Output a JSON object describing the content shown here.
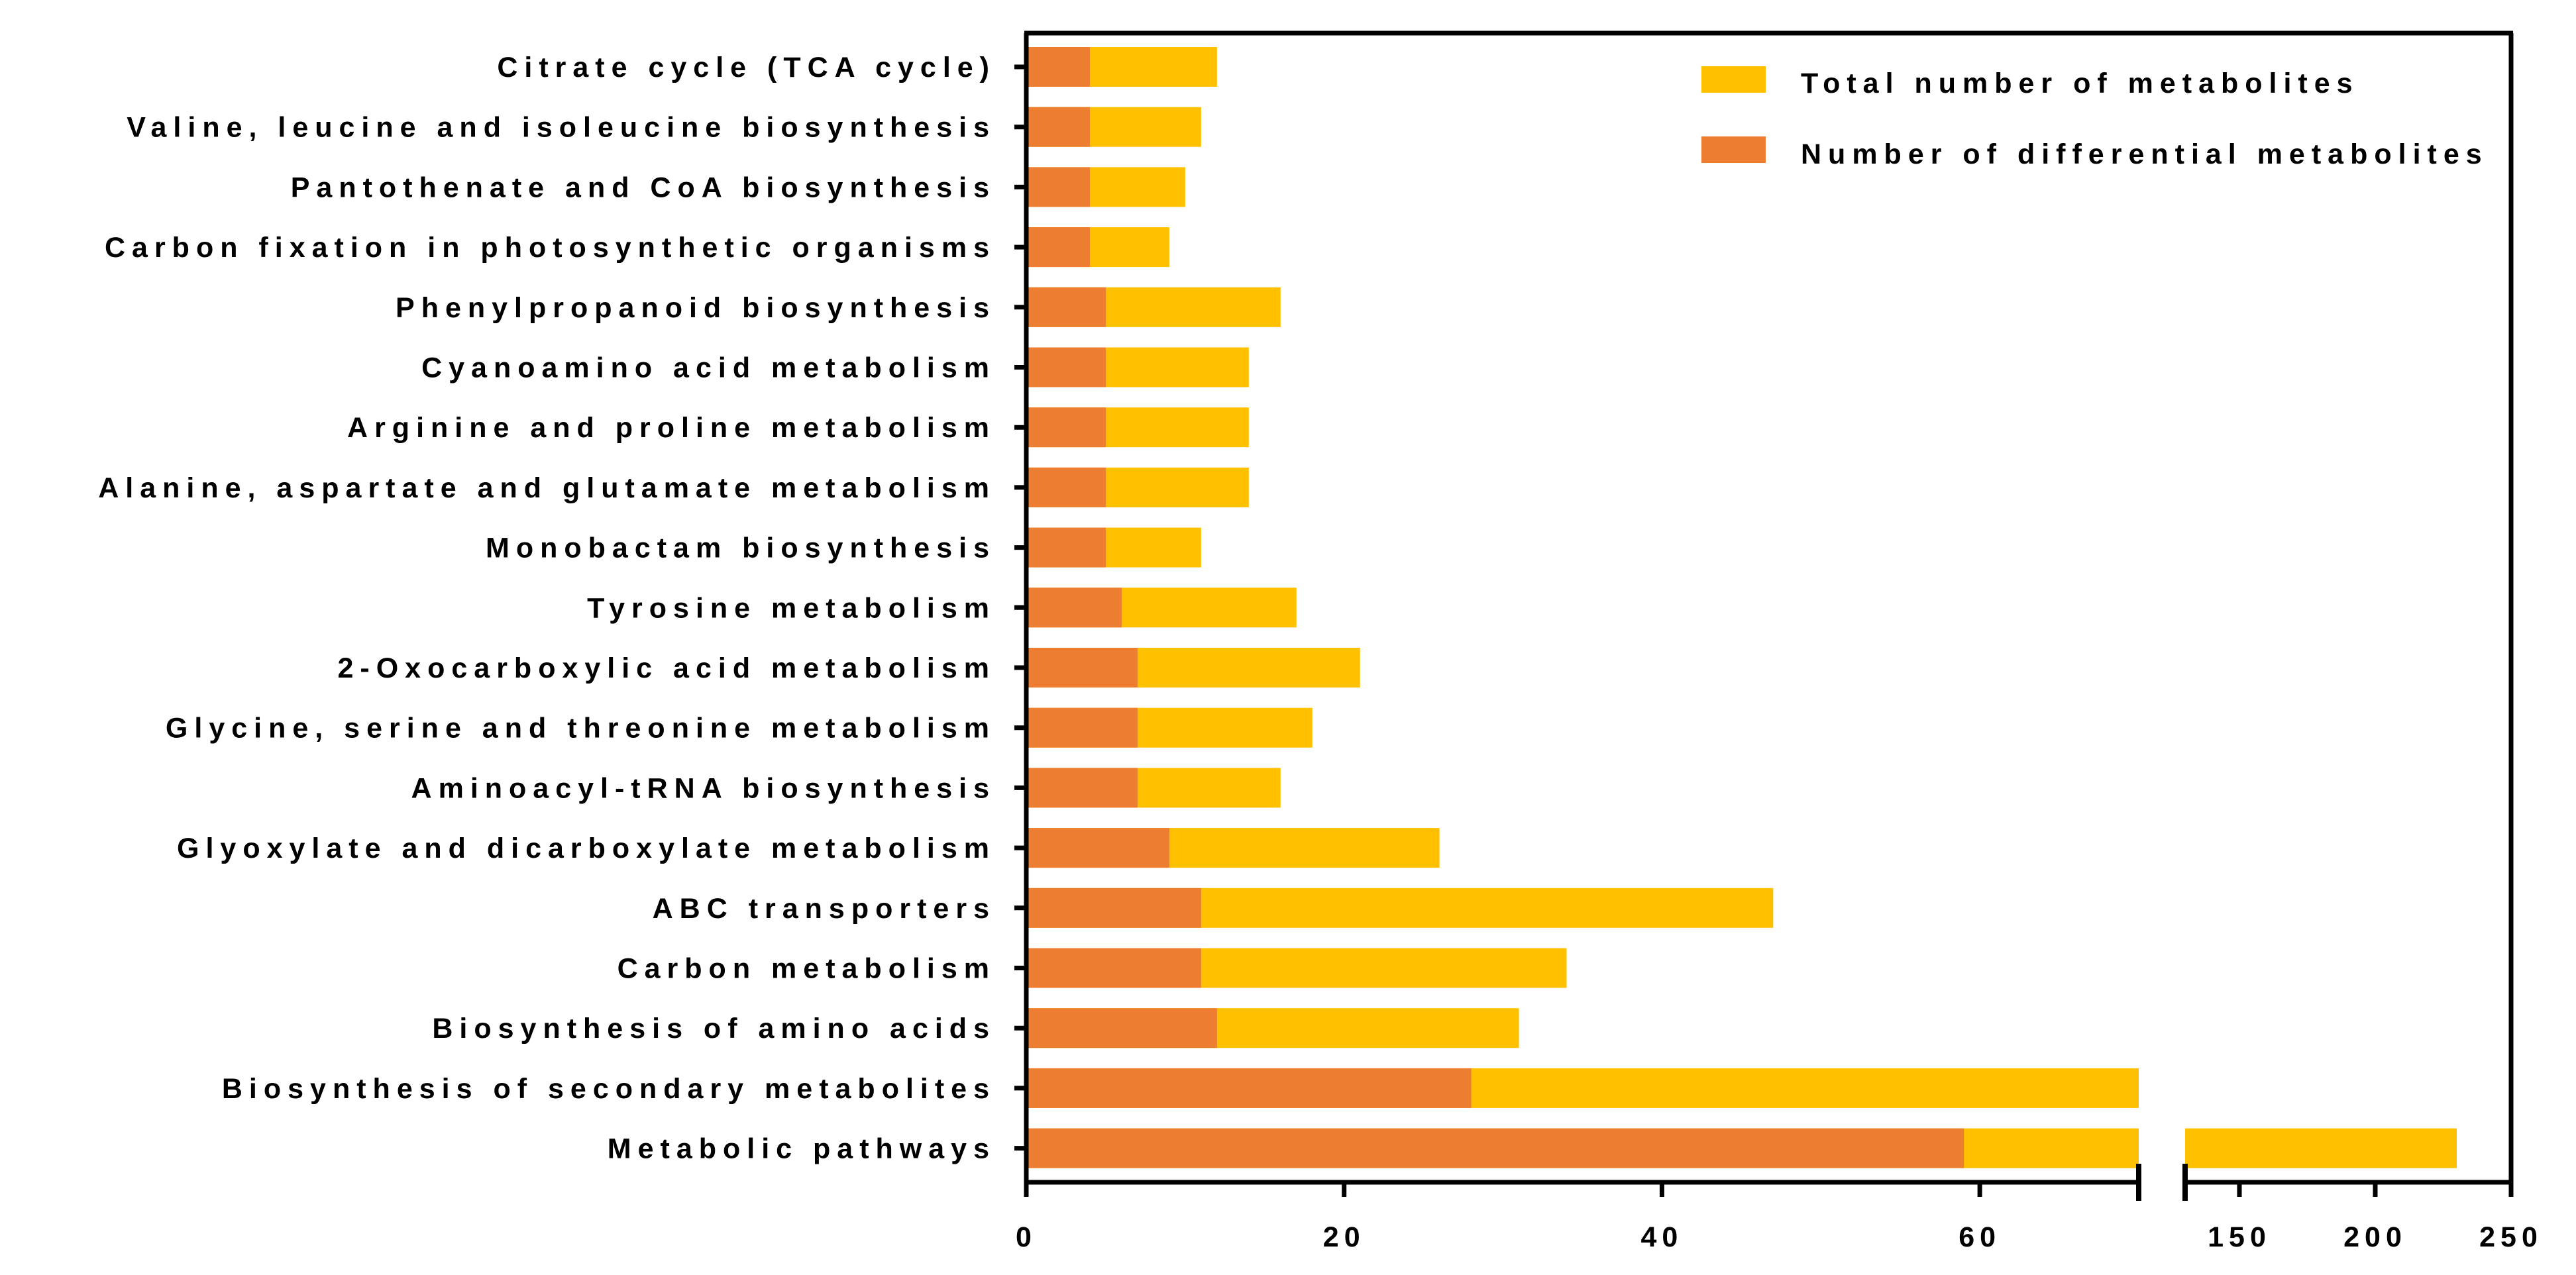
{
  "chart_data": {
    "type": "bar",
    "orientation": "horizontal",
    "stacked": "overlay",
    "categories": [
      "Citrate cycle (TCA cycle)",
      "Valine, leucine and isoleucine biosynthesis",
      "Pantothenate and CoA biosynthesis",
      "Carbon fixation in photosynthetic organisms",
      "Phenylpropanoid biosynthesis",
      "Cyanoamino acid metabolism",
      "Arginine and proline metabolism",
      "Alanine, aspartate and glutamate metabolism",
      "Monobactam biosynthesis",
      "Tyrosine metabolism",
      "2-Oxocarboxylic acid metabolism",
      "Glycine, serine and threonine metabolism",
      "Aminoacyl-tRNA biosynthesis",
      "Glyoxylate and dicarboxylate metabolism",
      "ABC transporters",
      "Carbon metabolism",
      "Biosynthesis of amino acids",
      "Biosynthesis of secondary metabolites",
      "Metabolic pathways"
    ],
    "series": [
      {
        "name": "Total number of metabolites",
        "color": "#FFC000",
        "values": [
          12,
          11,
          10,
          9,
          16,
          14,
          14,
          14,
          11,
          17,
          21,
          18,
          16,
          26,
          47,
          34,
          31,
          70,
          230
        ]
      },
      {
        "name": "Number of differential metabolites",
        "color": "#ED7D31",
        "values": [
          4,
          4,
          4,
          4,
          5,
          5,
          5,
          5,
          5,
          6,
          7,
          7,
          7,
          9,
          11,
          11,
          12,
          28,
          59
        ]
      }
    ],
    "x_axis": {
      "broken": true,
      "segment1": {
        "range": [
          0,
          70
        ],
        "ticks": [
          0,
          20,
          40,
          60
        ],
        "tick_labels": [
          "0",
          "20",
          "40",
          "60"
        ]
      },
      "segment2": {
        "range": [
          130,
          250
        ],
        "ticks": [
          150,
          200,
          250
        ],
        "tick_labels": [
          "150",
          "200",
          "250"
        ]
      }
    },
    "legend": {
      "position": "top-right",
      "entries": [
        "Total number of metabolites",
        "Number of differential metabolites"
      ]
    },
    "title": "",
    "xlabel": "",
    "ylabel": ""
  }
}
